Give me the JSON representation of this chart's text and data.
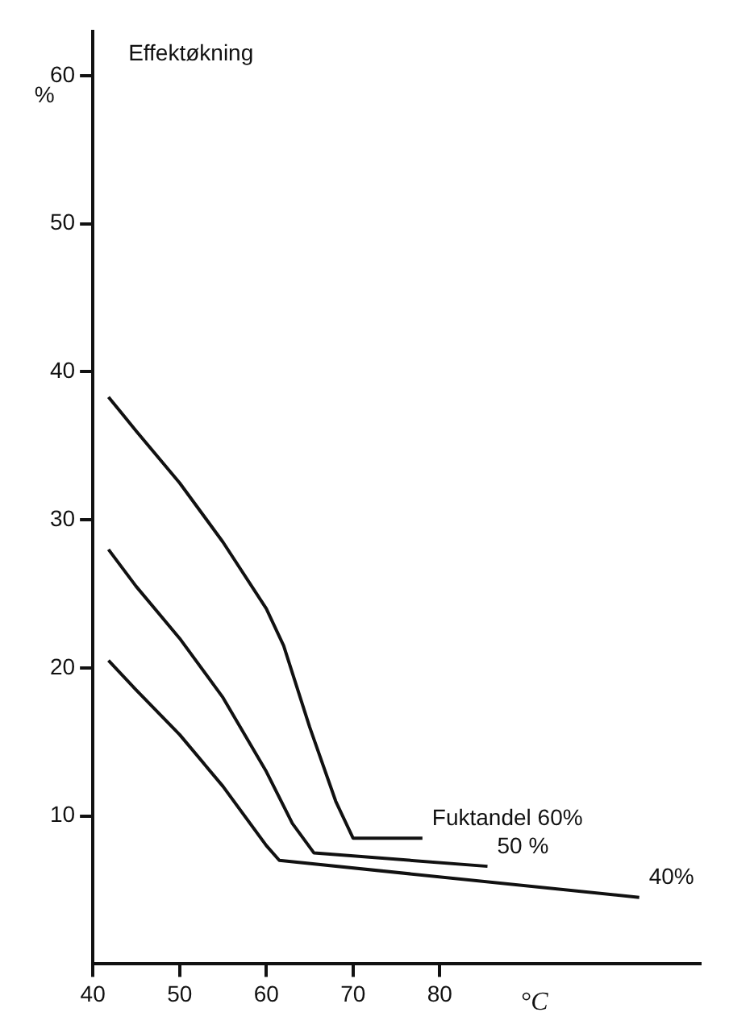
{
  "chart_data": {
    "type": "line",
    "title": "Effektøkning",
    "xlabel": "°C",
    "ylabel": "%",
    "xlim": [
      40,
      110
    ],
    "xticks": [
      40,
      50,
      60,
      70,
      80
    ],
    "ylim": [
      0,
      63
    ],
    "yticks": [
      10,
      20,
      30,
      40,
      50,
      60
    ],
    "grid": false,
    "legend": false,
    "marker": "none",
    "line_style": "solid",
    "series": [
      {
        "name": "Fuktandel 60%",
        "color": "#111111",
        "x": [
          41.8,
          45,
          50,
          55,
          60,
          62,
          65,
          68,
          70,
          78
        ],
        "values": [
          38.3,
          36,
          32.5,
          28.5,
          24,
          21.5,
          16,
          11,
          8.5,
          8.5
        ]
      },
      {
        "name": "50 %",
        "color": "#111111",
        "x": [
          41.8,
          45,
          50,
          55,
          60,
          63,
          65.5,
          85.5
        ],
        "values": [
          28,
          25.5,
          22,
          18,
          13,
          9.5,
          7.5,
          6.6
        ]
      },
      {
        "name": "40%",
        "color": "#111111",
        "x": [
          41.8,
          45,
          50,
          55,
          60,
          61.5,
          103
        ],
        "values": [
          20.5,
          18.5,
          15.5,
          12,
          8,
          7,
          4.5
        ]
      }
    ]
  }
}
